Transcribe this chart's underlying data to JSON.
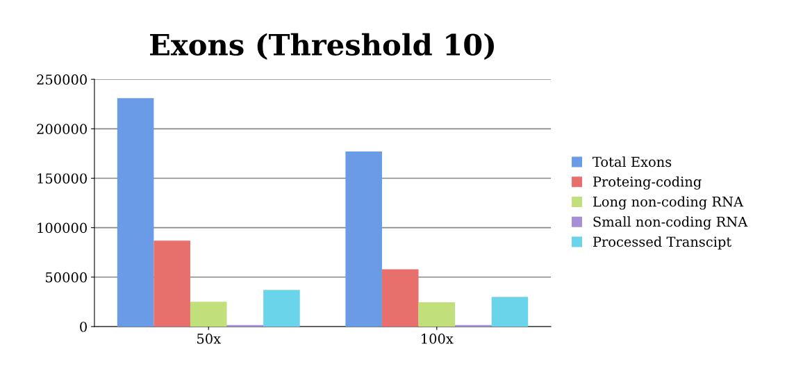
{
  "chart_data": {
    "type": "bar",
    "title": "Exons (Threshold 10)",
    "categories": [
      "50x",
      "100x"
    ],
    "series": [
      {
        "name": "Total Exons",
        "color": "#6a9be6",
        "values": [
          231000,
          177000
        ]
      },
      {
        "name": "Proteing-coding",
        "color": "#e8706c",
        "values": [
          87000,
          58000
        ]
      },
      {
        "name": "Long non-coding RNA",
        "color": "#c1e07c",
        "values": [
          25000,
          24500
        ]
      },
      {
        "name": "Small non-coding RNA",
        "color": "#a88ed6",
        "values": [
          1600,
          1600
        ]
      },
      {
        "name": "Processed Transcipt",
        "color": "#6ad4ea",
        "values": [
          37000,
          30000
        ]
      }
    ],
    "ylim": [
      0,
      250000
    ],
    "yticks": [
      0,
      50000,
      100000,
      150000,
      200000,
      250000
    ],
    "grid": "y",
    "legend": "right"
  }
}
